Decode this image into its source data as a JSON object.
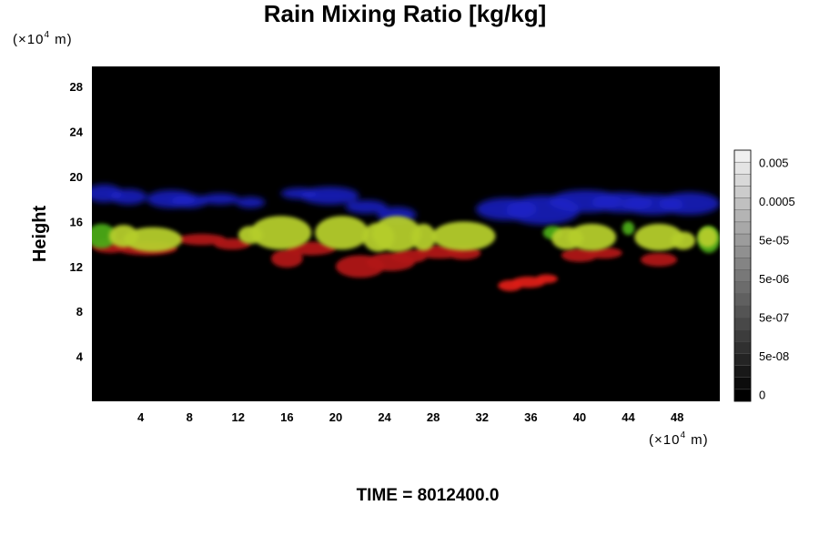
{
  "chart_data": {
    "type": "heatmap",
    "title": "Rain Mixing Ratio [kg/kg]",
    "ylabel": "Height",
    "xlabel": "",
    "y_unit": "(×10",
    "y_unit_exp": "4",
    "y_unit_end": " m)",
    "x_unit": "(×10",
    "x_unit_exp": "4",
    "x_unit_end": " m)",
    "xlim": [
      0,
      51.5
    ],
    "ylim": [
      0,
      29.8
    ],
    "x_ticks": [
      "4",
      "8",
      "12",
      "16",
      "20",
      "24",
      "28",
      "32",
      "36",
      "40",
      "44",
      "48"
    ],
    "y_ticks": [
      "4",
      "8",
      "12",
      "16",
      "20",
      "24",
      "28"
    ],
    "background_color": "#000000",
    "grid": false,
    "colorbar": {
      "labels": [
        "0",
        "5e-08",
        "5e-07",
        "5e-06",
        "5e-05",
        "0.0005",
        "0.005"
      ],
      "segments": 21,
      "color_low": "#000000",
      "color_high": "#f0f0f0"
    },
    "features": [
      {
        "kind": "blue-band",
        "color": "#1a22c8",
        "blobs": [
          [
            1,
            18.5,
            1.5,
            0.8
          ],
          [
            3,
            18.2,
            1.5,
            0.7
          ],
          [
            6.5,
            18,
            2,
            0.8
          ],
          [
            8,
            17.8,
            1.5,
            0.6
          ],
          [
            10.5,
            18,
            1.6,
            0.5
          ],
          [
            13,
            17.7,
            1.2,
            0.5
          ],
          [
            17,
            18.5,
            1.5,
            0.5
          ],
          [
            19.5,
            18.3,
            2.4,
            0.8
          ],
          [
            22.5,
            17.3,
            1.7,
            0.6
          ],
          [
            25,
            16.6,
            1.6,
            0.7
          ],
          [
            34,
            17.1,
            2.5,
            1
          ],
          [
            37,
            17,
            3,
            1.3
          ],
          [
            40.5,
            17.8,
            3,
            1
          ],
          [
            43.5,
            17.7,
            2.5,
            0.9
          ],
          [
            46,
            17.5,
            2.5,
            0.9
          ],
          [
            49,
            17.6,
            2.5,
            1
          ]
        ]
      },
      {
        "kind": "red-layer",
        "color": "#b01818",
        "blobs": [
          [
            1.5,
            13.8,
            1.5,
            0.6
          ],
          [
            4.5,
            13.6,
            2.5,
            0.6
          ],
          [
            9,
            14.4,
            2,
            0.5
          ],
          [
            11.5,
            14,
            1.5,
            0.5
          ],
          [
            16,
            12.7,
            1.3,
            0.8
          ],
          [
            18,
            13.6,
            2,
            0.6
          ],
          [
            22,
            12,
            2,
            1
          ],
          [
            24.5,
            12.4,
            2,
            0.8
          ],
          [
            26,
            12.9,
            1.5,
            0.6
          ],
          [
            28.5,
            13.3,
            2,
            0.6
          ],
          [
            30.5,
            13.2,
            1.4,
            0.6
          ],
          [
            40,
            13,
            1.5,
            0.6
          ],
          [
            42,
            13.2,
            1.5,
            0.5
          ],
          [
            46.5,
            12.6,
            1.5,
            0.6
          ]
        ]
      },
      {
        "kind": "green-blobs",
        "color": "#4caa18",
        "blobs": [
          [
            0.8,
            14.7,
            1.2,
            1.1
          ],
          [
            50.6,
            14.4,
            0.9,
            1.2
          ],
          [
            37.8,
            15,
            0.8,
            0.6
          ],
          [
            44,
            15.4,
            0.5,
            0.6
          ]
        ]
      },
      {
        "kind": "yellow-green-blobs",
        "color": "#b4cc2a",
        "blobs": [
          [
            5,
            14.4,
            2.4,
            1.1
          ],
          [
            2.6,
            14.7,
            1.2,
            1
          ],
          [
            15.5,
            15,
            2.5,
            1.5
          ],
          [
            13,
            14.8,
            1,
            0.8
          ],
          [
            20.5,
            15,
            2.2,
            1.5
          ],
          [
            23.5,
            14.6,
            1.3,
            1.3
          ],
          [
            25,
            14.9,
            2,
            1.6
          ],
          [
            27.2,
            14.6,
            1,
            1.2
          ],
          [
            30.5,
            14.7,
            2.6,
            1.3
          ],
          [
            39,
            14.5,
            1.3,
            1
          ],
          [
            41,
            14.6,
            2,
            1.2
          ],
          [
            46.5,
            14.6,
            2,
            1.2
          ],
          [
            48.5,
            14.3,
            1,
            0.8
          ],
          [
            50.5,
            14.6,
            0.8,
            0.9
          ]
        ]
      },
      {
        "kind": "red-patch",
        "color": "#dd1a14",
        "blobs": [
          [
            34.3,
            10.3,
            1,
            0.5
          ],
          [
            35.8,
            10.6,
            1.4,
            0.5
          ],
          [
            37.3,
            10.9,
            0.9,
            0.4
          ]
        ]
      }
    ],
    "annotation": "TIME = 8012400.0"
  }
}
